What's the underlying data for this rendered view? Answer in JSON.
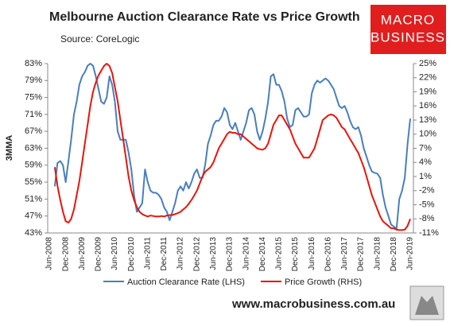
{
  "chart_data": {
    "type": "line",
    "title": "Melbourne Auction Clearance Rate vs Price Growth",
    "subtitle": "Source: CoreLogic",
    "ylabel": "3MMA",
    "logo": [
      "MACRO",
      "BUSINESS"
    ],
    "footer": "www.macrobusiness.com.au",
    "categories": [
      "Jun-2008",
      null,
      null,
      null,
      null,
      null,
      "Dec-2008",
      null,
      null,
      null,
      null,
      null,
      "Jun-2009",
      null,
      null,
      null,
      null,
      null,
      "Dec-2009",
      null,
      null,
      null,
      null,
      null,
      "Jun-2010",
      null,
      null,
      null,
      null,
      null,
      "Dec-2010",
      null,
      null,
      null,
      null,
      null,
      "Jun-2011",
      null,
      null,
      null,
      null,
      null,
      "Dec-2011",
      null,
      null,
      null,
      null,
      null,
      "Jun-2012",
      null,
      null,
      null,
      null,
      null,
      "Dec-2012",
      null,
      null,
      null,
      null,
      null,
      "Jun-2013",
      null,
      null,
      null,
      null,
      null,
      "Dec-2013",
      null,
      null,
      null,
      null,
      null,
      "Jun-2014",
      null,
      null,
      null,
      null,
      null,
      "Dec-2014",
      null,
      null,
      null,
      null,
      null,
      "Jun-2015",
      null,
      null,
      null,
      null,
      null,
      "Dec-2015",
      null,
      null,
      null,
      null,
      null,
      "Jun-2016",
      null,
      null,
      null,
      null,
      null,
      "Dec-2016",
      null,
      null,
      null,
      null,
      null,
      "Jun-2017",
      null,
      null,
      null,
      null,
      null,
      "Dec-2017",
      null,
      null,
      null,
      null,
      null,
      "Jun-2018",
      null,
      null,
      null,
      null,
      null,
      "Dec-2018",
      null,
      null,
      null,
      null,
      null,
      "Jun-2019"
    ],
    "series": [
      {
        "name": "Auction Clearance Rate (LHS)",
        "color": "#4a7ebb",
        "axis": "y",
        "values": [
          null,
          null,
          54,
          59.5,
          60,
          59,
          55,
          60,
          65,
          71,
          74,
          78,
          80,
          81,
          82.5,
          83,
          82.5,
          80,
          77,
          74,
          73.5,
          75,
          80,
          78,
          74,
          67,
          65,
          65,
          65,
          62,
          58,
          52,
          48,
          49,
          50,
          58,
          55,
          53,
          52.5,
          52.5,
          52,
          51,
          49,
          48,
          46,
          48,
          50,
          53,
          54,
          53,
          55,
          53.5,
          55,
          57,
          58,
          56,
          56,
          59,
          64,
          66,
          68.5,
          69.5,
          69.5,
          70.5,
          72.5,
          71.5,
          68.5,
          67.5,
          69,
          67,
          65,
          67,
          69,
          72,
          72.5,
          71,
          67,
          65,
          67,
          70,
          74,
          80,
          80.5,
          78,
          78,
          76.5,
          74,
          70,
          68,
          68.5,
          72,
          72.5,
          71.5,
          70.5,
          70.5,
          71,
          76,
          78,
          79,
          78.5,
          79,
          79.5,
          79,
          78,
          77,
          75,
          73,
          72.5,
          73,
          71.5,
          69.5,
          68,
          67.5,
          68,
          66,
          63,
          61,
          59,
          57.5,
          57.2,
          57,
          56,
          52,
          49,
          47,
          45,
          44.5,
          44,
          51,
          53,
          56,
          64,
          70
        ]
      },
      {
        "name": "Price Growth (RHS)",
        "color": "#e8140c",
        "axis": "y2",
        "values": [
          null,
          null,
          3,
          -1,
          -4,
          -6.5,
          -8.5,
          -8.8,
          -8,
          -6,
          -3,
          0,
          4,
          8,
          12,
          16,
          19,
          21,
          22.5,
          23.5,
          24.5,
          25,
          24.5,
          23,
          20,
          17,
          13,
          9,
          5,
          1,
          -2,
          -4,
          -5.5,
          -6.5,
          -7,
          -7.3,
          -7.5,
          -7.3,
          -7.4,
          -7.5,
          -7.5,
          -7.4,
          -7.5,
          -7.3,
          -7.2,
          -7.2,
          -7,
          -6.8,
          -6.5,
          -6,
          -5.5,
          -4.8,
          -4,
          -3,
          -2,
          -0.5,
          1,
          2,
          2.5,
          3,
          4,
          5.5,
          7,
          8,
          9,
          10,
          10.5,
          10.3,
          10.3,
          10,
          10,
          9.5,
          9,
          8.5,
          8,
          7.5,
          7,
          6.8,
          6.7,
          7,
          8,
          10,
          12,
          13,
          14,
          14,
          13,
          12,
          11,
          9.5,
          8,
          7,
          6,
          5,
          5,
          5,
          6,
          7,
          9,
          11,
          13,
          13.5,
          14,
          14.2,
          14,
          13.5,
          12.5,
          11.5,
          11,
          10,
          9,
          8,
          7,
          6,
          4.5,
          3,
          1,
          -1,
          -3,
          -4.5,
          -6,
          -7.5,
          -8.5,
          -9,
          -9.5,
          -10,
          -10,
          -10.3,
          -10.4,
          -10.4,
          -10.3,
          -9.5,
          -8
        ]
      }
    ],
    "ylim": [
      43,
      83
    ],
    "yticks": [
      {
        "value": 43,
        "label": "43%"
      },
      {
        "value": 47,
        "label": "47%"
      },
      {
        "value": 51,
        "label": "51%"
      },
      {
        "value": 55,
        "label": "55%"
      },
      {
        "value": 59,
        "label": "59%"
      },
      {
        "value": 63,
        "label": "63%"
      },
      {
        "value": 67,
        "label": "67%"
      },
      {
        "value": 71,
        "label": "71%"
      },
      {
        "value": 75,
        "label": "75%"
      },
      {
        "value": 79,
        "label": "79%"
      },
      {
        "value": 83,
        "label": "83%"
      }
    ],
    "y2lim": [
      -11,
      25
    ],
    "y2ticks": [
      {
        "value": -11,
        "label": "-11%"
      },
      {
        "value": -8,
        "label": "-8%"
      },
      {
        "value": -5,
        "label": "-5%"
      },
      {
        "value": -2,
        "label": "-2%"
      },
      {
        "value": 1,
        "label": "1%"
      },
      {
        "value": 4,
        "label": "4%"
      },
      {
        "value": 7,
        "label": "7%"
      },
      {
        "value": 10,
        "label": "10%"
      },
      {
        "value": 13,
        "label": "13%"
      },
      {
        "value": 16,
        "label": "16%"
      },
      {
        "value": 19,
        "label": "19%"
      },
      {
        "value": 22,
        "label": "22%"
      },
      {
        "value": 25,
        "label": "25%"
      }
    ],
    "legend": "bottom"
  }
}
